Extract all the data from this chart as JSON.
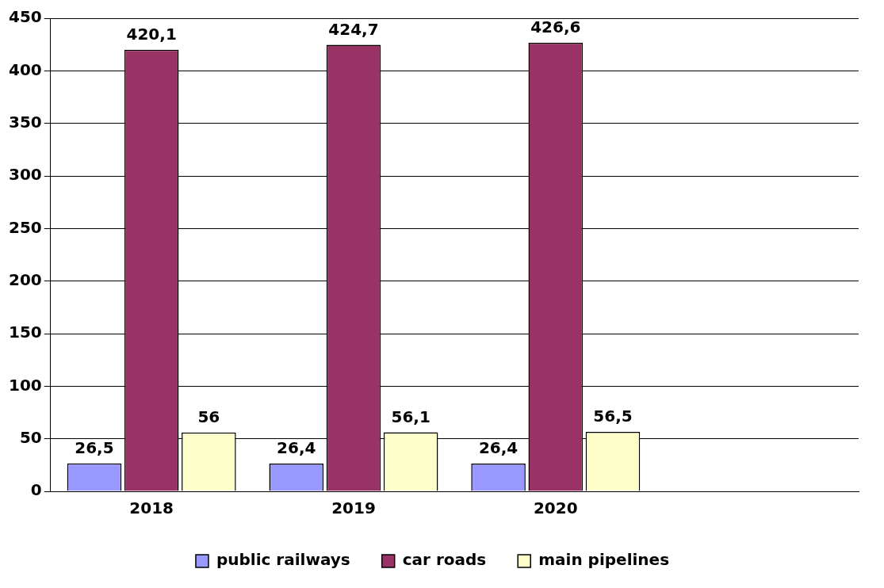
{
  "chart_data": {
    "type": "bar",
    "categories": [
      "2018",
      "2019",
      "2020",
      null
    ],
    "series": [
      {
        "name": "public railways",
        "color": "#9999ff",
        "values": [
          26.5,
          26.4,
          26.4,
          null
        ],
        "value_labels": [
          "26,5",
          "26,4",
          "26,4",
          null
        ]
      },
      {
        "name": "car roads",
        "color": "#993366",
        "values": [
          420.1,
          424.7,
          426.6,
          null
        ],
        "value_labels": [
          "420,1",
          "424,7",
          "426,6",
          null
        ]
      },
      {
        "name": "main pipelines",
        "color": "#ffffcc",
        "values": [
          56,
          56.1,
          56.5,
          null
        ],
        "value_labels": [
          "56",
          "56,1",
          "56,5",
          null
        ]
      }
    ],
    "ylim": [
      0,
      450
    ],
    "yticks": [
      0,
      50,
      100,
      150,
      200,
      250,
      300,
      350,
      400,
      450
    ],
    "grid": "y",
    "legend": "bottom"
  }
}
